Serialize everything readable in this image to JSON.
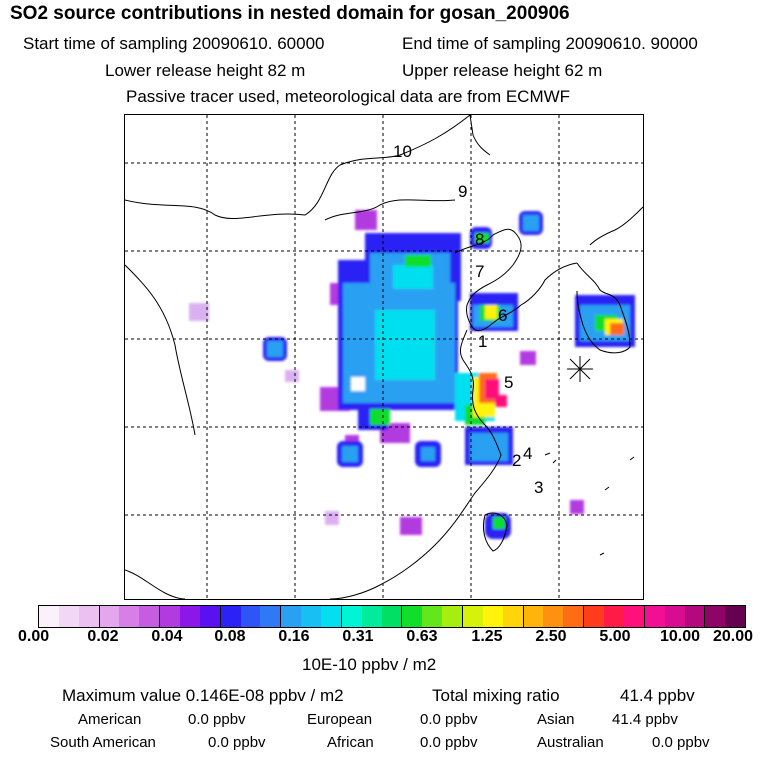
{
  "header": {
    "title": "SO2 source contributions in nested domain for gosan_200906",
    "start_time": "Start time of sampling 20090610. 60000",
    "end_time": "End time of sampling 20090610. 90000",
    "lower_release": "Lower release height   82 m",
    "upper_release": "Upper release height   62 m",
    "tracer_note": "Passive tracer used, meteorological data are from ECMWF"
  },
  "map": {
    "receptor_marker": "gosan-receptor",
    "labels": [
      "10",
      "9",
      "8",
      "7",
      "6",
      "1",
      "5",
      "4",
      "2",
      "3"
    ]
  },
  "colorbar": {
    "tick_labels": [
      "0.00",
      "0.02",
      "0.04",
      "0.08",
      "0.16",
      "0.31",
      "0.63",
      "1.25",
      "2.50",
      "5.00",
      "10.00",
      "20.00"
    ],
    "colors": [
      "#fbf0fb",
      "#f3d8f5",
      "#ecc0f0",
      "#e4a6ec",
      "#d77fe6",
      "#c65de0",
      "#b23be0",
      "#8c18e8",
      "#5a10f0",
      "#2b22f5",
      "#2f55f7",
      "#3079f5",
      "#2aa0f3",
      "#17bff2",
      "#04dfef",
      "#00f4d6",
      "#00ec9a",
      "#00e063",
      "#10de2a",
      "#62e81a",
      "#a6ee0f",
      "#d6f20a",
      "#fff30a",
      "#ffd50a",
      "#ffb40c",
      "#ff9110",
      "#ff6c14",
      "#ff3c1c",
      "#ff1a47",
      "#ff107a",
      "#f20f93",
      "#d70c91",
      "#b4087e",
      "#8e0467",
      "#650250"
    ],
    "unit_label": "10E-10 ppbv / m2"
  },
  "summary": {
    "max_value": "Maximum value  0.146E-08 ppbv / m2",
    "total_mixing": "Total mixing ratio",
    "total_value": "41.4 ppbv",
    "regions": [
      {
        "name": "American",
        "value": "0.0 ppbv"
      },
      {
        "name": "European",
        "value": "0.0 ppbv"
      },
      {
        "name": "Asian",
        "value": "41.4 ppbv"
      },
      {
        "name": "South American",
        "value": "0.0 ppbv"
      },
      {
        "name": "African",
        "value": "0.0 ppbv"
      },
      {
        "name": "Australian",
        "value": "0.0 ppbv"
      }
    ]
  }
}
